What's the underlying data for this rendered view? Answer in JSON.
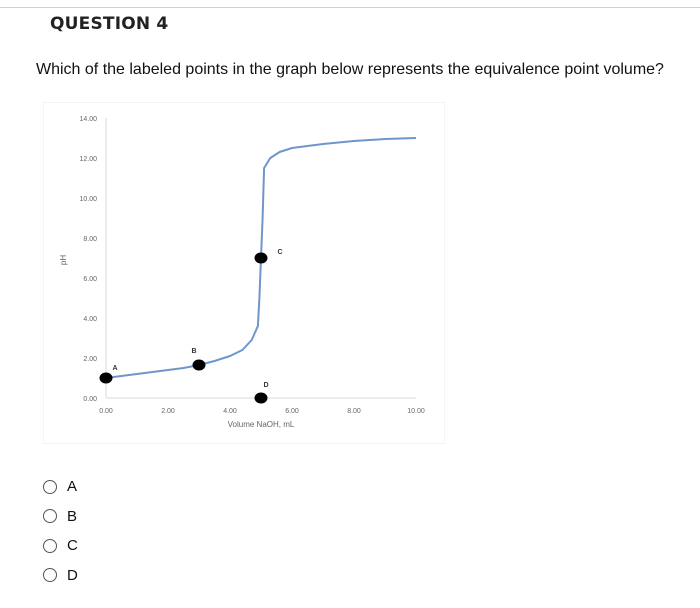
{
  "question": {
    "header": "QUESTION 4",
    "text": "Which of the labeled points in the graph below represents the equivalence point volume?"
  },
  "chart_data": {
    "type": "line",
    "title": "",
    "xlabel": "Volume NaOH, mL",
    "ylabel": "pH",
    "xlim": [
      0,
      10
    ],
    "ylim": [
      0,
      14
    ],
    "x_ticks": [
      "0.00",
      "2.00",
      "4.00",
      "6.00",
      "8.00",
      "10.00"
    ],
    "y_ticks": [
      "0.00",
      "2.00",
      "4.00",
      "6.00",
      "8.00",
      "10.00",
      "12.00",
      "14.00"
    ],
    "grid": false,
    "line_color": "#6f96cc",
    "series": [
      {
        "x": [
          0.0,
          0.5,
          1.0,
          1.5,
          2.0,
          2.5,
          3.0,
          3.5,
          4.0,
          4.4,
          4.7,
          4.9,
          4.95,
          5.0,
          5.05,
          5.1,
          5.3,
          5.6,
          6.0,
          7.0,
          8.0,
          9.0,
          10.0
        ],
        "y": [
          1.0,
          1.1,
          1.2,
          1.3,
          1.4,
          1.5,
          1.65,
          1.85,
          2.1,
          2.4,
          2.9,
          3.6,
          5.0,
          7.0,
          9.0,
          11.5,
          12.0,
          12.3,
          12.5,
          12.7,
          12.85,
          12.95,
          13.0
        ]
      }
    ],
    "points": [
      {
        "label": "A",
        "x": 0.0,
        "y": 1.0
      },
      {
        "label": "B",
        "x": 3.0,
        "y": 1.65
      },
      {
        "label": "C",
        "x": 5.0,
        "y": 7.0
      },
      {
        "label": "D",
        "x": 5.0,
        "y": 0.0
      }
    ],
    "point_color": "#000000"
  },
  "options": [
    {
      "label": "A"
    },
    {
      "label": "B"
    },
    {
      "label": "C"
    },
    {
      "label": "D"
    }
  ]
}
